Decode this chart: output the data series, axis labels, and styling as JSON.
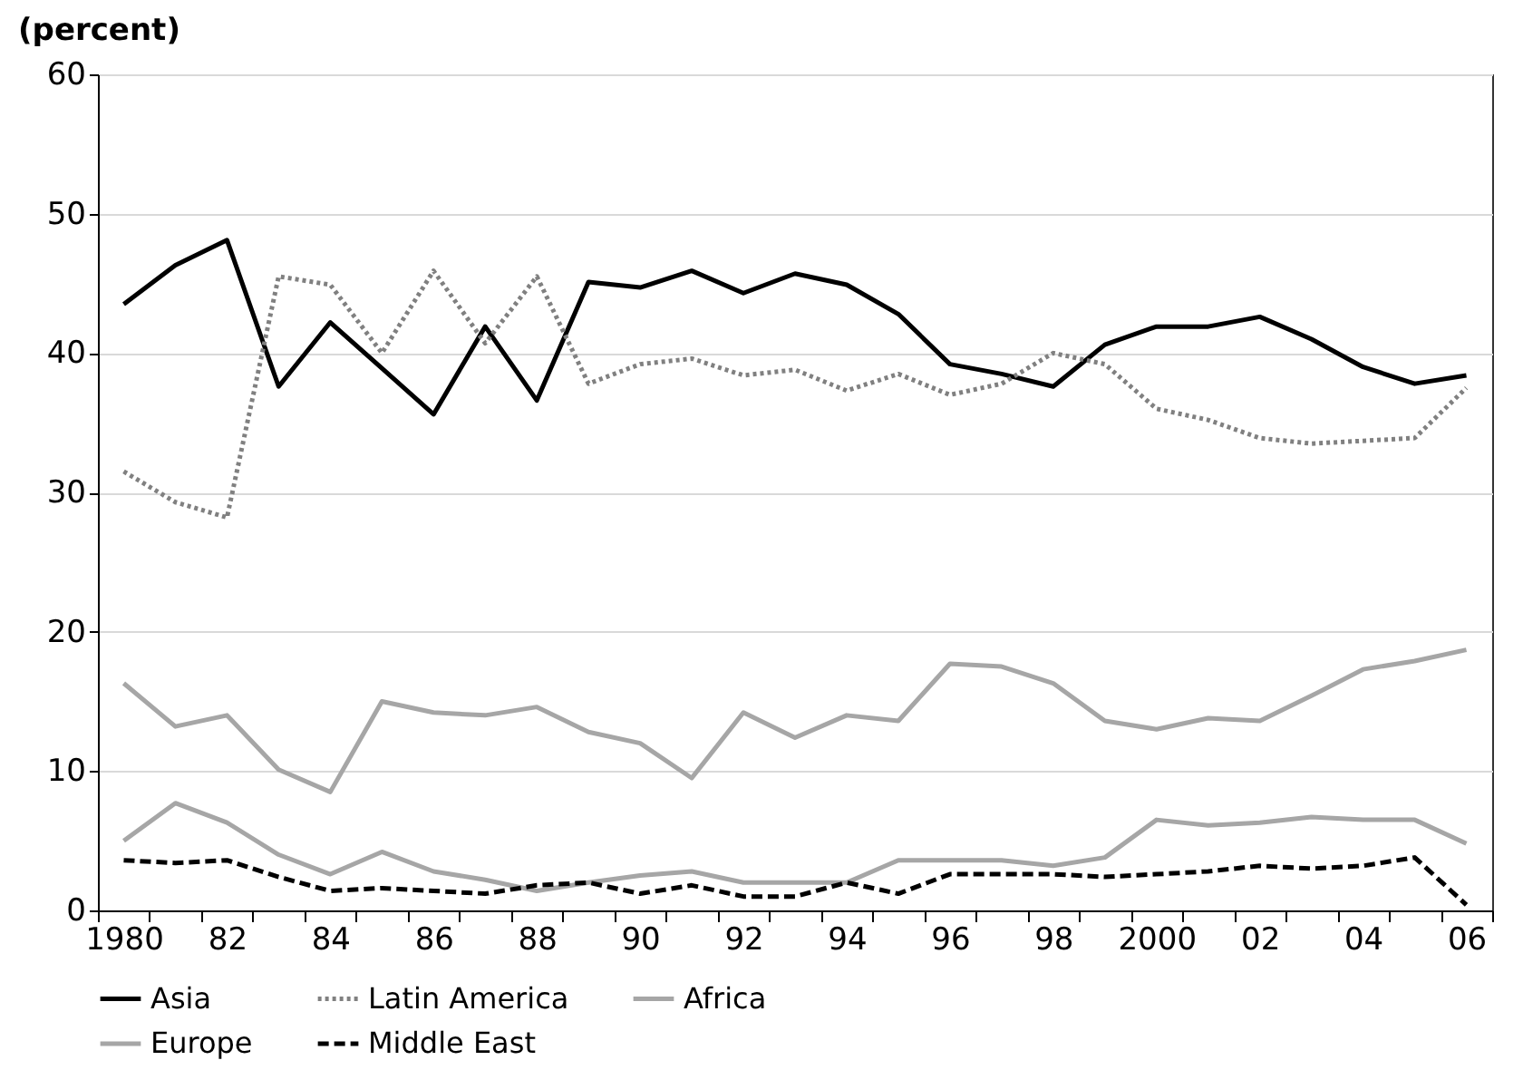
{
  "chart_data": {
    "type": "line",
    "title": "(percent)",
    "categories": [
      "1980",
      null,
      "82",
      null,
      "84",
      null,
      "86",
      null,
      "88",
      null,
      "90",
      null,
      "92",
      null,
      "94",
      null,
      "96",
      null,
      "98",
      null,
      "2000",
      null,
      "02",
      null,
      "04",
      null,
      "06"
    ],
    "series": [
      {
        "name": "Asia",
        "color": "#000000",
        "line_style": "solid",
        "values": [
          43.5,
          46.3,
          48.1,
          37.6,
          42.2,
          38.9,
          35.6,
          41.9,
          36.6,
          45.1,
          44.7,
          45.9,
          44.3,
          45.7,
          44.9,
          42.8,
          39.2,
          38.5,
          37.6,
          40.6,
          41.9,
          41.9,
          42.6,
          41.0,
          39.0,
          37.8,
          38.4
        ]
      },
      {
        "name": "Latin America",
        "color": "#808080",
        "line_style": "dotted",
        "values": [
          31.5,
          29.3,
          28.2,
          45.5,
          44.9,
          40.0,
          45.9,
          40.7,
          45.5,
          37.8,
          39.2,
          39.6,
          38.4,
          38.8,
          37.3,
          38.5,
          37.0,
          37.8,
          40.0,
          39.2,
          36.0,
          35.2,
          33.9,
          33.5,
          33.7,
          33.9,
          37.5
        ]
      },
      {
        "name": "Africa",
        "color": "#a6a6a6",
        "line_style": "solid",
        "values": [
          16.3,
          13.2,
          14.0,
          10.1,
          8.5,
          15.0,
          14.2,
          14.0,
          14.6,
          12.8,
          12.0,
          9.5,
          14.2,
          12.4,
          14.0,
          13.6,
          17.7,
          17.5,
          16.3,
          13.6,
          13.0,
          13.8,
          13.6,
          15.4,
          17.3,
          17.9,
          18.7
        ]
      },
      {
        "name": "Europe",
        "color": "#a6a6a6",
        "line_style": "solid",
        "values": [
          5.0,
          7.7,
          6.3,
          4.0,
          2.6,
          4.2,
          2.8,
          2.2,
          1.4,
          2.0,
          2.5,
          2.8,
          2.0,
          2.0,
          2.0,
          3.6,
          3.6,
          3.6,
          3.2,
          3.8,
          6.5,
          6.1,
          6.3,
          6.7,
          6.5,
          6.5,
          4.8
        ]
      },
      {
        "name": "Middle East",
        "color": "#000000",
        "line_style": "dashed",
        "values": [
          3.6,
          3.4,
          3.6,
          2.4,
          1.4,
          1.6,
          1.4,
          1.2,
          1.8,
          2.0,
          1.2,
          1.8,
          1.0,
          1.0,
          2.0,
          1.2,
          2.6,
          2.6,
          2.6,
          2.4,
          2.6,
          2.8,
          3.2,
          3.0,
          3.2,
          3.8,
          0.4
        ]
      }
    ],
    "ylim": [
      0,
      60
    ],
    "yticks": [
      0,
      10,
      20,
      30,
      40,
      50,
      60
    ],
    "grid": "y",
    "legend": "bottom"
  }
}
